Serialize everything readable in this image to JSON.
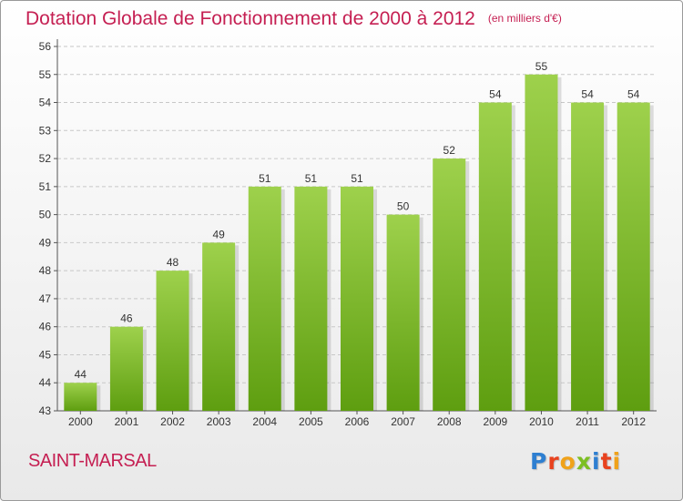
{
  "header": {
    "title": "Dotation Globale de Fonctionnement de 2000 à 2012",
    "unit": "(en milliers d'€)"
  },
  "footer": {
    "place": "SAINT-MARSAL",
    "logo": {
      "text": "Proxiti",
      "letters": [
        {
          "ch": "P",
          "color": "#2e7fd1"
        },
        {
          "ch": "r",
          "color": "#e8421e"
        },
        {
          "ch": "o",
          "color": "#f0a21a"
        },
        {
          "ch": "x",
          "color": "#7cbf22"
        },
        {
          "ch": "i",
          "color": "#2e7fd1"
        },
        {
          "ch": "t",
          "color": "#e8421e"
        },
        {
          "ch": "i",
          "color": "#f0a21a"
        }
      ]
    }
  },
  "colors": {
    "accent": "#c51f52",
    "bar_top": "#9ed14c",
    "bar_bottom": "#5e9e10",
    "grid": "#c8c8c8",
    "text": "#333333"
  },
  "chart_data": {
    "type": "bar",
    "categories": [
      "2000",
      "2001",
      "2002",
      "2003",
      "2004",
      "2005",
      "2006",
      "2007",
      "2008",
      "2009",
      "2010",
      "2011",
      "2012"
    ],
    "values": [
      44,
      46,
      48,
      49,
      51,
      51,
      51,
      50,
      52,
      54,
      55,
      54,
      54
    ],
    "ylim": [
      43,
      56
    ],
    "yticks": [
      43,
      44,
      45,
      46,
      47,
      48,
      49,
      50,
      51,
      52,
      53,
      54,
      55,
      56
    ],
    "grid": true,
    "data_labels": true
  }
}
